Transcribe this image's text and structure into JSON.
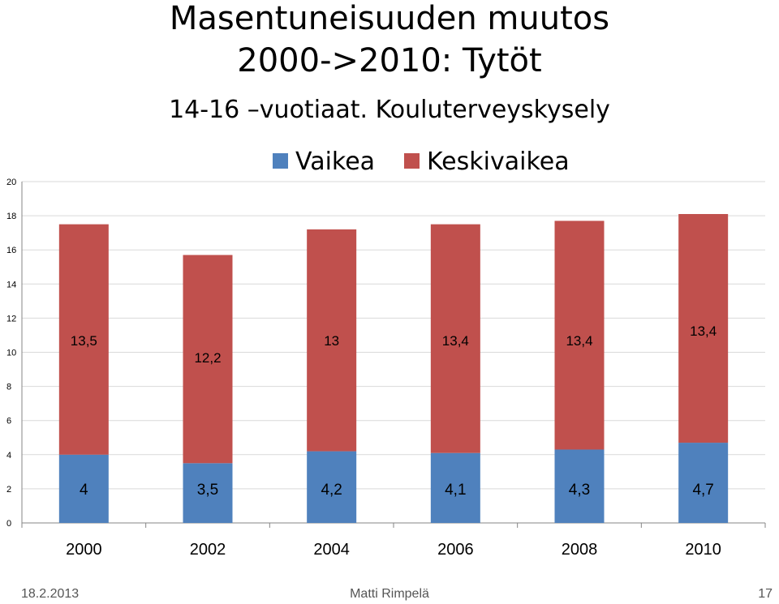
{
  "title_line1": "Masentuneisuuden muutos",
  "title_line2": "2000->2010: Tytöt",
  "subtitle": "14-16 –vuotiaat. Kouluterveyskysely",
  "footer": {
    "date": "18.2.2013",
    "author": "Matti Rimpelä",
    "page": "17"
  },
  "chart_data": {
    "type": "bar",
    "stacked": true,
    "categories": [
      "2000",
      "2002",
      "2004",
      "2006",
      "2008",
      "2010"
    ],
    "series": [
      {
        "name": "Vaikea",
        "values": [
          4,
          3.5,
          4.2,
          4.1,
          4.3,
          4.7
        ],
        "labels": [
          "4",
          "3,5",
          "4,2",
          "4,1",
          "4,3",
          "4,7"
        ],
        "color": "#4f81bd"
      },
      {
        "name": "Keskivaikea",
        "values": [
          13.5,
          12.2,
          13,
          13.4,
          13.4,
          13.4
        ],
        "labels": [
          "13,5",
          "12,2",
          "13",
          "13,4",
          "13,4",
          "13,4"
        ],
        "color": "#c0504d"
      }
    ],
    "ylim": [
      0,
      20
    ],
    "yticks": [
      0,
      2,
      4,
      6,
      8,
      10,
      12,
      14,
      16,
      18,
      20
    ],
    "grid": true,
    "legend": "top"
  }
}
